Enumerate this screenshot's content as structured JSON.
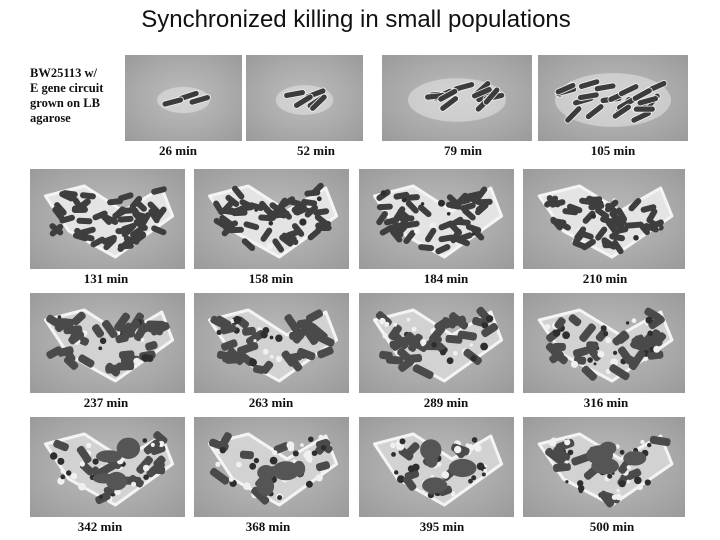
{
  "title": "Synchronized killing in small populations",
  "caption_lines": [
    "BW25113 w/",
    "E gene circuit",
    "grown on LB",
    "agarose"
  ],
  "frames": [
    {
      "time": "26 min"
    },
    {
      "time": "52 min"
    },
    {
      "time": "79 min"
    },
    {
      "time": "105 min"
    },
    {
      "time": "131 min"
    },
    {
      "time": "158 min"
    },
    {
      "time": "184 min"
    },
    {
      "time": "210 min"
    },
    {
      "time": "237 min"
    },
    {
      "time": "263 min"
    },
    {
      "time": "289 min"
    },
    {
      "time": "316 min"
    },
    {
      "time": "342 min"
    },
    {
      "time": "368 min"
    },
    {
      "time": "395 min"
    },
    {
      "time": "500 min"
    }
  ],
  "colors": {
    "background": "#ffffff",
    "text": "#111111",
    "frame_gray": "#a9a9a9",
    "cell_dark": "#3a3a3a"
  }
}
